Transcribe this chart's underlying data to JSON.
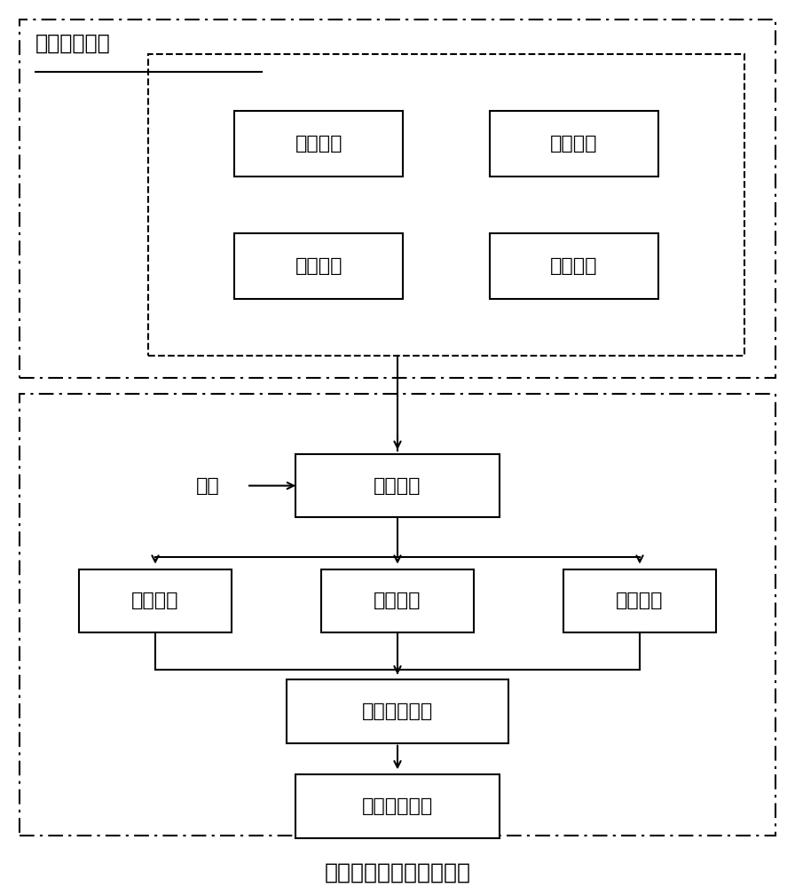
{
  "title": "总重检测与平均水分转换",
  "top_label": "运行初始参数",
  "box1_text": "初始水分",
  "box2_text": "初始料位",
  "box3_text": "热风温度",
  "box4_text": "排粮速度",
  "box_dry": "干燥过程",
  "label_disturb": "干扰",
  "box_total": "总重检测",
  "box_temp": "温度检测",
  "box_level": "料位检测",
  "box_model": "水分转换模型",
  "box_result": "实时平均水分",
  "font_size_main": 16,
  "font_size_title": 18,
  "font_size_label": 15,
  "bg_color": "#ffffff",
  "box_edge_color": "#000000",
  "lw": 1.5,
  "dash_lw": 1.5,
  "fig_w": 8.96,
  "fig_h": 10.0
}
